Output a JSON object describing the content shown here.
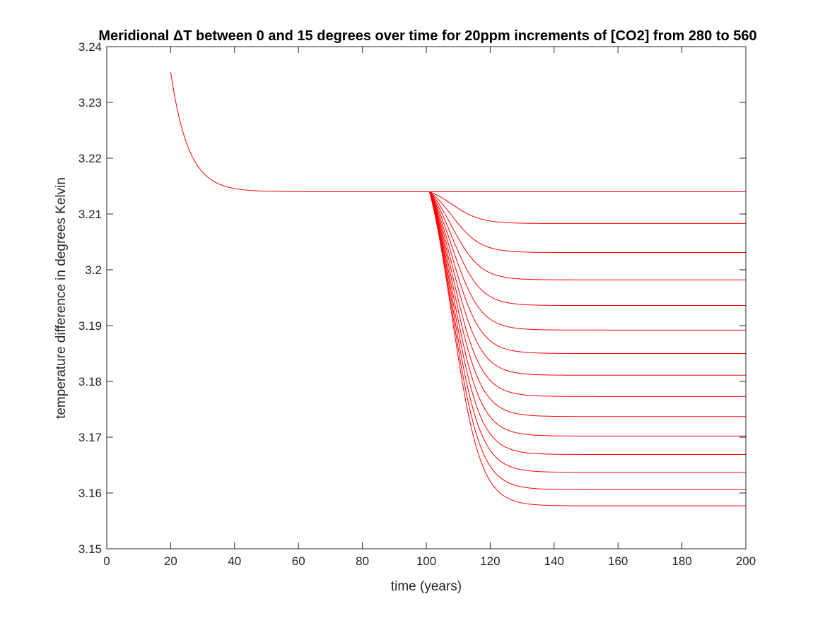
{
  "chart_data": {
    "type": "line",
    "title": "Meridional ΔT between 0 and 15 degrees over time for 20ppm increments of [CO2] from 280 to 560",
    "xlabel": "time (years)",
    "ylabel": "temperature difference in degrees Kelvin",
    "xlim": [
      0,
      200
    ],
    "ylim": [
      3.15,
      3.24
    ],
    "xticks": [
      "0",
      "20",
      "40",
      "60",
      "80",
      "100",
      "120",
      "140",
      "160",
      "180",
      "200"
    ],
    "yticks": [
      "3.15",
      "3.16",
      "3.17",
      "3.18",
      "3.19",
      "3.2",
      "3.21",
      "3.22",
      "3.23",
      "3.24"
    ],
    "grid": false,
    "legend": "none",
    "line_color": "#ff0000",
    "spinup": {
      "x_start": 20,
      "y_start": 3.2355,
      "y_equilibrium": 3.214,
      "tau_years": 5.5
    },
    "forcing_start_year": 101,
    "x_end": 200,
    "series": [
      {
        "final": 3.214
      },
      {
        "final": 3.2083
      },
      {
        "final": 3.2031
      },
      {
        "final": 3.1982
      },
      {
        "final": 3.1936
      },
      {
        "final": 3.1892
      },
      {
        "final": 3.185
      },
      {
        "final": 3.1811
      },
      {
        "final": 3.1773
      },
      {
        "final": 3.1737
      },
      {
        "final": 3.1702
      },
      {
        "final": 3.1669
      },
      {
        "final": 3.1637
      },
      {
        "final": 3.1606
      },
      {
        "final": 3.1577
      }
    ]
  }
}
